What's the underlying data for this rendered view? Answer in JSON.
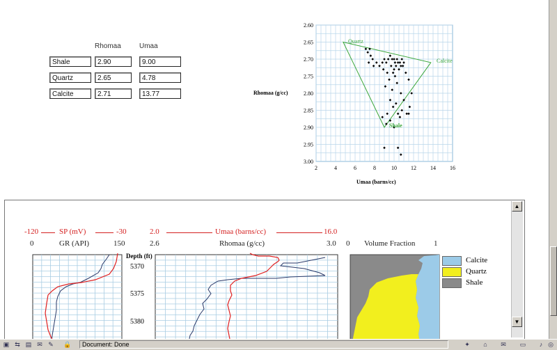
{
  "table": {
    "col_rhomaa": "Rhomaa",
    "col_umaa": "Umaa",
    "rows": [
      {
        "label": "Shale",
        "rhomaa": "2.90",
        "umaa": "9.00"
      },
      {
        "label": "Quartz",
        "rhomaa": "2.65",
        "umaa": "4.78"
      },
      {
        "label": "Calcite",
        "rhomaa": "2.71",
        "umaa": "13.77"
      }
    ]
  },
  "crossplot": {
    "ylabel": "Rhomaa (g/cc)",
    "xlabel": "Umaa (barns/cc)",
    "y_ticks": [
      "2.60",
      "2.65",
      "2.70",
      "2.75",
      "2.80",
      "2.85",
      "2.90",
      "2.95",
      "3.00"
    ],
    "x_ticks": [
      "2",
      "4",
      "6",
      "8",
      "10",
      "12",
      "14",
      "16"
    ],
    "label_quartz": "Quartz",
    "label_calcite": "Calcite",
    "label_shale": "Shale",
    "triangle_color": "#3aa63a",
    "point_color": "#000000"
  },
  "chart_data": {
    "type": "scatter",
    "xlabel": "Umaa (barns/cc)",
    "ylabel": "Rhomaa (g/cc)",
    "xlim": [
      2,
      16
    ],
    "ylim": [
      3.0,
      2.6
    ],
    "y_inverted": true,
    "grid": true,
    "triangle": [
      {
        "name": "Quartz",
        "x": 4.78,
        "y": 2.65
      },
      {
        "name": "Calcite",
        "x": 13.77,
        "y": 2.71
      },
      {
        "name": "Shale",
        "x": 9.0,
        "y": 2.9
      }
    ],
    "points": [
      [
        7.1,
        2.67
      ],
      [
        7.3,
        2.68
      ],
      [
        7.5,
        2.67
      ],
      [
        7.6,
        2.69
      ],
      [
        7.8,
        2.7
      ],
      [
        7.4,
        2.71
      ],
      [
        7.9,
        2.72
      ],
      [
        8.2,
        2.71
      ],
      [
        8.5,
        2.72
      ],
      [
        8.8,
        2.71
      ],
      [
        9.0,
        2.7
      ],
      [
        9.2,
        2.71
      ],
      [
        9.4,
        2.7
      ],
      [
        9.6,
        2.69
      ],
      [
        9.8,
        2.7
      ],
      [
        10.0,
        2.7
      ],
      [
        10.1,
        2.71
      ],
      [
        10.2,
        2.72
      ],
      [
        10.3,
        2.7
      ],
      [
        10.4,
        2.71
      ],
      [
        10.5,
        2.73
      ],
      [
        10.6,
        2.71
      ],
      [
        10.7,
        2.72
      ],
      [
        10.8,
        2.7
      ],
      [
        10.9,
        2.72
      ],
      [
        11.0,
        2.71
      ],
      [
        10.0,
        2.73
      ],
      [
        9.7,
        2.72
      ],
      [
        9.9,
        2.74
      ],
      [
        10.1,
        2.75
      ],
      [
        9.5,
        2.76
      ],
      [
        10.3,
        2.77
      ],
      [
        11.2,
        2.74
      ],
      [
        11.5,
        2.76
      ],
      [
        8.9,
        2.73
      ],
      [
        9.3,
        2.74
      ],
      [
        9.1,
        2.78
      ],
      [
        9.8,
        2.79
      ],
      [
        10.7,
        2.8
      ],
      [
        11.8,
        2.8
      ],
      [
        9.6,
        2.82
      ],
      [
        10.2,
        2.83
      ],
      [
        11.0,
        2.82
      ],
      [
        10.4,
        2.86
      ],
      [
        11.6,
        2.84
      ],
      [
        9.3,
        2.86
      ],
      [
        10.6,
        2.87
      ],
      [
        11.3,
        2.86
      ],
      [
        9.9,
        2.84
      ],
      [
        10.8,
        2.85
      ],
      [
        9.6,
        2.88
      ],
      [
        8.8,
        2.87
      ],
      [
        9.2,
        2.89
      ],
      [
        10.0,
        2.9
      ],
      [
        11.5,
        2.86
      ],
      [
        9.0,
        2.96
      ],
      [
        10.4,
        2.96
      ],
      [
        10.7,
        2.98
      ]
    ]
  },
  "logs": {
    "sp_left": "-120",
    "sp_label": "SP (mV)",
    "sp_right": "-30",
    "gr_left": "0",
    "gr_label": "GR (API)",
    "gr_right": "150",
    "umaa_left": "2.0",
    "umaa_label": "Umaa (barns/cc)",
    "umaa_right": "16.0",
    "rhomaa_left": "2.6",
    "rhomaa_label": "Rhomaa (g/cc)",
    "rhomaa_right": "3.0",
    "vf_left": "0",
    "vf_label": "Volume Fraction",
    "vf_right": "1",
    "depth_label": "Depth (ft)",
    "depths": [
      "5370",
      "5375",
      "5380"
    ],
    "sp_color": "#e02020",
    "gr_color": "#2a3a6a"
  },
  "legend": [
    {
      "name": "Calcite",
      "color": "#9ccbe8"
    },
    {
      "name": "Quartz",
      "color": "#f2ef1e"
    },
    {
      "name": "Shale",
      "color": "#8a8a8a"
    }
  ],
  "statusbar": {
    "text": "Document: Done"
  }
}
